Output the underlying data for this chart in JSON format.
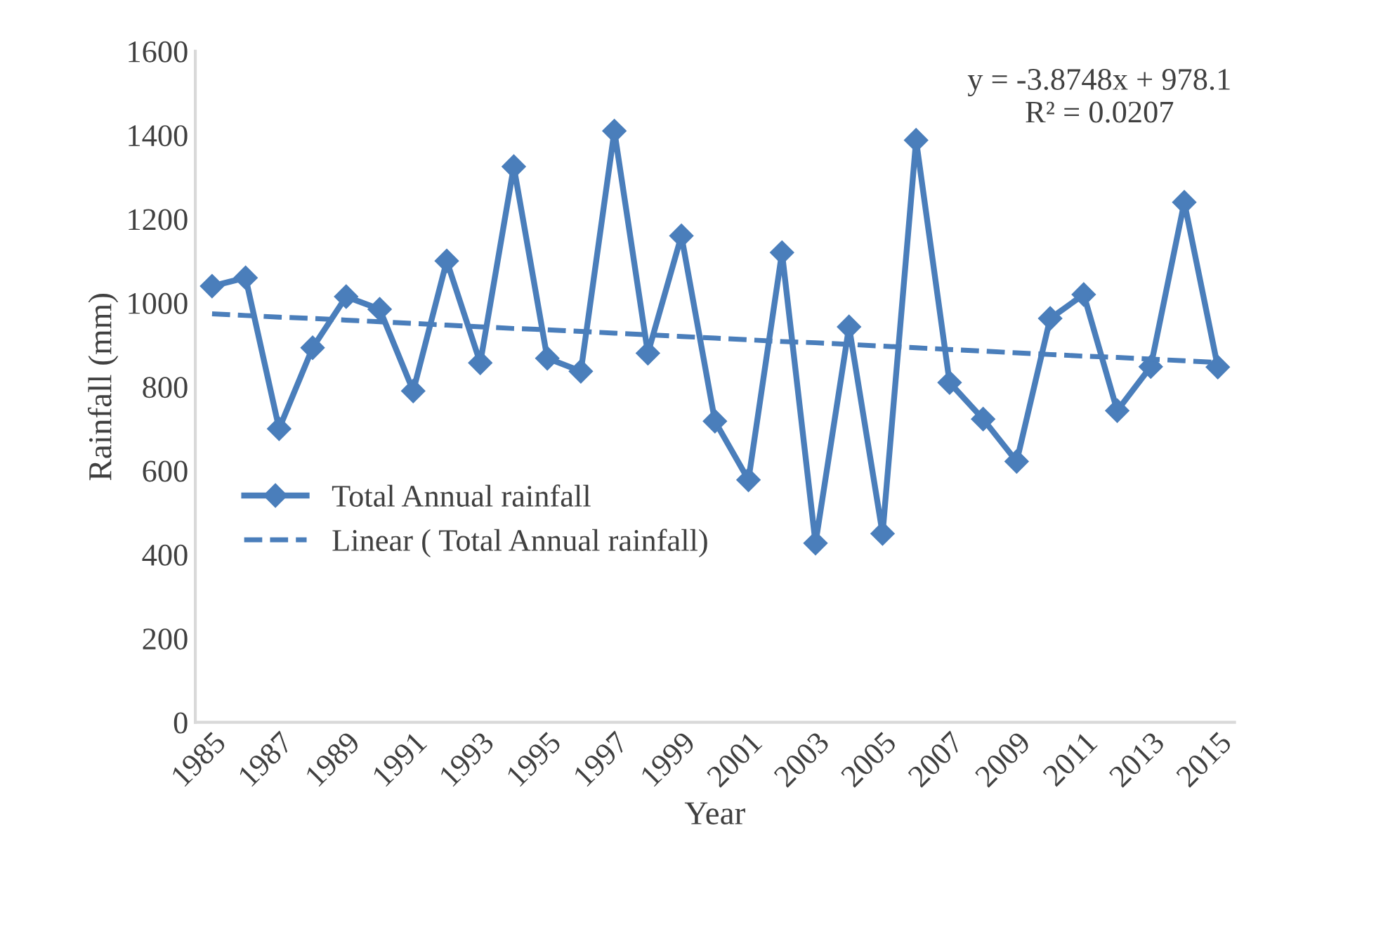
{
  "chart_data": {
    "type": "line",
    "xlabel": "Year",
    "ylabel": "Rainfall (mm)",
    "categories": [
      "1985",
      null,
      "1987",
      null,
      "1989",
      null,
      "1991",
      null,
      "1993",
      null,
      "1995",
      null,
      "1997",
      null,
      "1999",
      null,
      "2001",
      null,
      "2003",
      null,
      "2005",
      null,
      "2007",
      null,
      "2009",
      null,
      "2011",
      null,
      "2013",
      null,
      "2015"
    ],
    "series": [
      {
        "name": "Total Annual rainfall",
        "color": "#4a7ebb",
        "marker": "diamond",
        "line_style": "solid",
        "values": [
          1040,
          1060,
          700,
          893,
          1015,
          985,
          790,
          1100,
          857,
          1325,
          868,
          837,
          1410,
          880,
          1160,
          718,
          578,
          1120,
          427,
          943,
          450,
          1388,
          810,
          723,
          622,
          963,
          1020,
          743,
          848,
          1240,
          847
        ]
      },
      {
        "name": "Linear ( Total Annual rainfall)",
        "color": "#4a7ebb",
        "marker": "none",
        "line_style": "dashed",
        "values": [
          974,
          970,
          966,
          963,
          959,
          955,
          951,
          947,
          943,
          939,
          936,
          932,
          928,
          924,
          920,
          916,
          912,
          908,
          905,
          901,
          897,
          893,
          889,
          885,
          881,
          877,
          873,
          870,
          866,
          862,
          858
        ]
      }
    ],
    "ylim": [
      0,
      1600
    ],
    "yticks": [
      0,
      200,
      400,
      600,
      800,
      1000,
      1200,
      1400,
      1600
    ],
    "grid": false,
    "legend": "center left",
    "annotations": [
      "y = -3.8748x + 978.1\nR² = 0.0207"
    ]
  }
}
